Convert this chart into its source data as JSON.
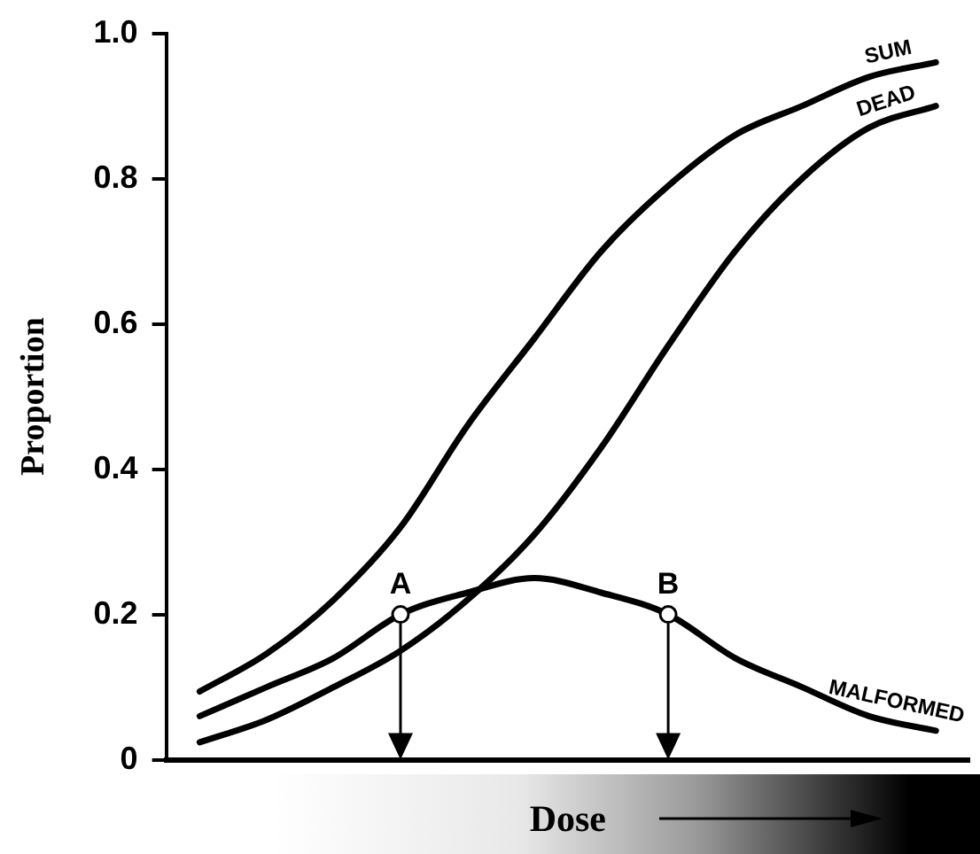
{
  "chart_data": {
    "type": "line",
    "xlabel": "Dose",
    "ylabel": "Proportion",
    "categories": [
      null,
      null,
      null,
      null,
      null,
      null,
      null,
      null,
      null,
      null,
      null,
      null
    ],
    "ylim": [
      0,
      1
    ],
    "yticks": [
      0,
      0.2,
      0.4,
      0.6,
      0.8,
      {
        "value": 1,
        "label": "1.0"
      }
    ],
    "grid": false,
    "legend": false,
    "tick_labels": "y",
    "marker": "none",
    "series": [
      {
        "name": "SUM",
        "type": "line",
        "color": "#000000",
        "values": [
          0.094,
          0.146,
          0.22,
          0.32,
          0.46,
          0.58,
          0.7,
          0.79,
          0.86,
          0.9,
          0.94,
          0.96
        ]
      },
      {
        "name": "DEAD",
        "type": "line",
        "color": "#000000",
        "values": [
          0.024,
          0.055,
          0.1,
          0.15,
          0.22,
          0.31,
          0.43,
          0.57,
          0.7,
          0.8,
          0.87,
          0.9
        ]
      },
      {
        "name": "MALFORMED",
        "type": "line",
        "color": "#000000",
        "values": [
          0.06,
          0.1,
          0.14,
          0.2,
          0.23,
          0.25,
          0.23,
          0.2,
          0.14,
          0.1,
          0.06,
          0.04
        ]
      },
      {
        "type": "scatter",
        "marker": "circle",
        "color": "#000000",
        "values": [
          null,
          null,
          null,
          0.2,
          null,
          null,
          null,
          0.2,
          null,
          null,
          null,
          null
        ],
        "value_labels": [
          null,
          null,
          null,
          "A",
          null,
          null,
          null,
          "B",
          null,
          null,
          null,
          null
        ]
      }
    ]
  }
}
